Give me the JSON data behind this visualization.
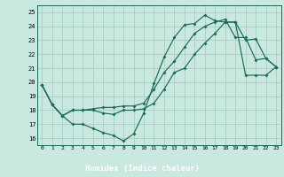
{
  "xlabel": "Humidex (Indice chaleur)",
  "bg_color": "#c8e8e0",
  "grid_color": "#a8ccc4",
  "line_color": "#1a6b5a",
  "bar_color": "#2a5a50",
  "xlim": [
    -0.5,
    23.5
  ],
  "ylim": [
    15.5,
    25.5
  ],
  "xticks": [
    0,
    1,
    2,
    3,
    4,
    5,
    6,
    7,
    8,
    9,
    10,
    11,
    12,
    13,
    14,
    15,
    16,
    17,
    18,
    19,
    20,
    21,
    22,
    23
  ],
  "yticks": [
    16,
    17,
    18,
    19,
    20,
    21,
    22,
    23,
    24,
    25
  ],
  "line1_x": [
    0,
    1,
    2,
    3,
    4,
    5,
    6,
    7,
    8,
    9,
    10,
    11,
    12,
    13,
    14,
    15,
    16,
    17,
    18,
    19,
    20,
    21,
    22,
    23
  ],
  "line1_y": [
    19.8,
    18.4,
    17.6,
    17.0,
    17.0,
    16.7,
    16.4,
    16.2,
    15.8,
    16.3,
    17.8,
    19.9,
    21.8,
    23.2,
    24.1,
    24.2,
    24.8,
    24.4,
    24.3,
    24.3,
    23.0,
    23.1,
    21.7,
    21.1
  ],
  "line2_x": [
    0,
    1,
    2,
    3,
    4,
    5,
    6,
    7,
    8,
    9,
    10,
    11,
    12,
    13,
    14,
    15,
    16,
    17,
    18,
    19,
    20,
    21,
    22,
    23
  ],
  "line2_y": [
    19.8,
    18.4,
    17.6,
    18.0,
    18.0,
    18.0,
    17.8,
    17.7,
    18.0,
    18.0,
    18.1,
    18.5,
    19.5,
    20.7,
    21.0,
    22.0,
    22.8,
    23.5,
    24.3,
    24.3,
    20.5,
    20.5,
    20.5,
    21.1
  ],
  "line3_x": [
    0,
    1,
    2,
    3,
    4,
    5,
    6,
    7,
    8,
    9,
    10,
    11,
    12,
    13,
    14,
    15,
    16,
    17,
    18,
    19,
    20,
    21,
    22,
    23
  ],
  "line3_y": [
    19.8,
    18.4,
    17.6,
    18.0,
    18.0,
    18.1,
    18.2,
    18.2,
    18.3,
    18.3,
    18.5,
    19.5,
    20.7,
    21.5,
    22.5,
    23.5,
    24.0,
    24.3,
    24.5,
    23.2,
    23.2,
    21.6,
    21.7,
    21.1
  ]
}
